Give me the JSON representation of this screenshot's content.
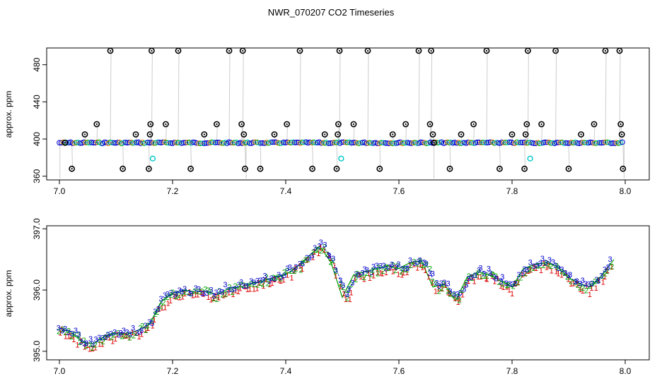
{
  "title": "NWR_070207  CO2 Timeseries",
  "colors": {
    "background": "#ffffff",
    "axis": "#000000",
    "trace": "#9a9a9a",
    "outlier_marker": "#000000",
    "series1": "#dd0000",
    "series2": "#00a000",
    "series3": "#0000cc",
    "cyan": "#00c8c8",
    "orange": "#e08000"
  },
  "chart_data": [
    {
      "type": "scatter",
      "ylabel": "approx. ppm",
      "xlim": [
        7.0,
        8.0
      ],
      "ylim": [
        356,
        498
      ],
      "x_ticks": [
        "7.0",
        "7.2",
        "7.4",
        "7.6",
        "7.8",
        "8.0"
      ],
      "y_ticks": [
        "360",
        "400",
        "440",
        "480"
      ],
      "baseline_ppm": 396,
      "outlier_high_ppm": 495,
      "outliers": [
        {
          "x": 7.01,
          "y": 396
        },
        {
          "x": 7.022,
          "y": 368
        },
        {
          "x": 7.045,
          "y": 405
        },
        {
          "x": 7.066,
          "y": 416
        },
        {
          "x": 7.09,
          "y": 495
        },
        {
          "x": 7.112,
          "y": 368
        },
        {
          "x": 7.135,
          "y": 405
        },
        {
          "x": 7.158,
          "y": 368
        },
        {
          "x": 7.16,
          "y": 405
        },
        {
          "x": 7.161,
          "y": 416
        },
        {
          "x": 7.163,
          "y": 495
        },
        {
          "x": 7.188,
          "y": 416
        },
        {
          "x": 7.21,
          "y": 495
        },
        {
          "x": 7.232,
          "y": 368
        },
        {
          "x": 7.256,
          "y": 405
        },
        {
          "x": 7.278,
          "y": 416
        },
        {
          "x": 7.3,
          "y": 495
        },
        {
          "x": 7.322,
          "y": 416
        },
        {
          "x": 7.324,
          "y": 495
        },
        {
          "x": 7.326,
          "y": 405
        },
        {
          "x": 7.328,
          "y": 368
        },
        {
          "x": 7.355,
          "y": 368
        },
        {
          "x": 7.38,
          "y": 405
        },
        {
          "x": 7.402,
          "y": 416
        },
        {
          "x": 7.425,
          "y": 495
        },
        {
          "x": 7.447,
          "y": 368
        },
        {
          "x": 7.469,
          "y": 405
        },
        {
          "x": 7.49,
          "y": 368
        },
        {
          "x": 7.492,
          "y": 405
        },
        {
          "x": 7.493,
          "y": 416
        },
        {
          "x": 7.495,
          "y": 495
        },
        {
          "x": 7.52,
          "y": 416
        },
        {
          "x": 7.545,
          "y": 495
        },
        {
          "x": 7.566,
          "y": 368
        },
        {
          "x": 7.589,
          "y": 405
        },
        {
          "x": 7.612,
          "y": 416
        },
        {
          "x": 7.635,
          "y": 495
        },
        {
          "x": 7.655,
          "y": 416
        },
        {
          "x": 7.657,
          "y": 495
        },
        {
          "x": 7.66,
          "y": 405
        },
        {
          "x": 7.662,
          "y": 396
        },
        {
          "x": 7.69,
          "y": 368
        },
        {
          "x": 7.71,
          "y": 405
        },
        {
          "x": 7.732,
          "y": 416
        },
        {
          "x": 7.755,
          "y": 495
        },
        {
          "x": 7.778,
          "y": 368
        },
        {
          "x": 7.8,
          "y": 405
        },
        {
          "x": 7.822,
          "y": 368
        },
        {
          "x": 7.824,
          "y": 405
        },
        {
          "x": 7.826,
          "y": 416
        },
        {
          "x": 7.828,
          "y": 495
        },
        {
          "x": 7.852,
          "y": 416
        },
        {
          "x": 7.877,
          "y": 495
        },
        {
          "x": 7.9,
          "y": 368
        },
        {
          "x": 7.922,
          "y": 405
        },
        {
          "x": 7.945,
          "y": 416
        },
        {
          "x": 7.965,
          "y": 495
        },
        {
          "x": 7.99,
          "y": 495
        },
        {
          "x": 7.992,
          "y": 416
        },
        {
          "x": 7.994,
          "y": 405
        },
        {
          "x": 7.996,
          "y": 368
        }
      ],
      "cyan_points": [
        {
          "x": 7.165,
          "y": 379
        },
        {
          "x": 7.498,
          "y": 379
        },
        {
          "x": 7.832,
          "y": 379
        }
      ]
    },
    {
      "type": "scatter",
      "ylabel": "approx. ppm",
      "xlim": [
        7.0,
        8.0
      ],
      "ylim": [
        394.86,
        397.05
      ],
      "x_ticks": [
        "7.0",
        "7.2",
        "7.4",
        "7.6",
        "7.8",
        "8.0"
      ],
      "y_ticks": [
        "395.0",
        "396.0",
        "397.0"
      ],
      "series_labels": [
        "1",
        "2",
        "3"
      ],
      "trend_x": [
        7.0,
        7.02,
        7.04,
        7.06,
        7.08,
        7.1,
        7.12,
        7.14,
        7.16,
        7.18,
        7.2,
        7.22,
        7.24,
        7.26,
        7.28,
        7.3,
        7.32,
        7.34,
        7.36,
        7.38,
        7.4,
        7.42,
        7.44,
        7.46,
        7.48,
        7.5,
        7.52,
        7.54,
        7.56,
        7.58,
        7.6,
        7.62,
        7.64,
        7.66,
        7.68,
        7.7,
        7.72,
        7.74,
        7.76,
        7.78,
        7.8,
        7.82,
        7.84,
        7.86,
        7.88,
        7.9,
        7.92,
        7.94,
        7.96,
        7.98
      ],
      "trend_y": [
        395.38,
        395.32,
        395.15,
        395.12,
        395.25,
        395.3,
        395.28,
        395.35,
        395.45,
        395.82,
        395.95,
        396.0,
        395.97,
        395.98,
        395.92,
        396.03,
        396.05,
        396.1,
        396.15,
        396.2,
        396.25,
        396.38,
        396.55,
        396.72,
        396.45,
        395.88,
        396.25,
        396.3,
        396.35,
        396.4,
        396.35,
        396.45,
        396.48,
        396.05,
        396.1,
        395.82,
        396.2,
        396.3,
        396.25,
        396.15,
        396.05,
        396.35,
        396.42,
        396.45,
        396.38,
        396.2,
        396.1,
        396.05,
        396.25,
        396.5
      ],
      "sample_x": [
        7.0,
        7.005,
        7.011,
        7.016,
        7.022,
        7.027,
        7.033,
        7.038,
        7.044,
        7.049,
        7.055,
        7.06,
        7.065,
        7.071,
        7.076,
        7.082,
        7.087,
        7.093,
        7.098,
        7.104,
        7.109,
        7.114,
        7.12,
        7.125,
        7.131,
        7.136,
        7.142,
        7.147,
        7.153,
        7.158,
        7.163,
        7.169,
        7.174,
        7.18,
        7.185,
        7.191,
        7.196,
        7.202,
        7.207,
        7.213,
        7.218,
        7.223,
        7.229,
        7.234,
        7.24,
        7.245,
        7.251,
        7.256,
        7.262,
        7.267,
        7.272,
        7.278,
        7.283,
        7.289,
        7.294,
        7.3,
        7.305,
        7.311,
        7.316,
        7.321,
        7.327,
        7.332,
        7.338,
        7.343,
        7.349,
        7.354,
        7.36,
        7.365,
        7.37,
        7.376,
        7.381,
        7.387,
        7.392,
        7.398,
        7.403,
        7.409,
        7.414,
        7.419,
        7.425,
        7.43,
        7.436,
        7.441,
        7.447,
        7.452,
        7.458,
        7.463,
        7.468,
        7.474,
        7.479,
        7.485,
        7.49,
        7.496,
        7.501,
        7.507,
        7.512,
        7.517,
        7.523,
        7.528,
        7.534,
        7.539,
        7.545,
        7.55,
        7.556,
        7.561,
        7.566,
        7.572,
        7.577,
        7.583,
        7.588,
        7.594,
        7.599,
        7.605,
        7.61,
        7.616,
        7.621,
        7.626,
        7.632,
        7.637,
        7.643,
        7.648,
        7.654,
        7.659,
        7.665,
        7.67,
        7.675,
        7.681,
        7.686,
        7.692,
        7.697,
        7.703,
        7.708,
        7.714,
        7.719,
        7.724,
        7.73,
        7.735,
        7.741,
        7.746,
        7.752,
        7.757,
        7.763,
        7.768,
        7.773,
        7.779,
        7.784,
        7.79,
        7.795,
        7.801,
        7.806,
        7.812,
        7.817,
        7.822,
        7.828,
        7.833,
        7.839,
        7.844,
        7.85,
        7.855,
        7.861,
        7.866,
        7.871,
        7.877,
        7.882,
        7.888,
        7.893,
        7.899,
        7.904,
        7.91,
        7.915,
        7.92,
        7.926,
        7.931,
        7.937,
        7.942,
        7.948,
        7.953,
        7.959,
        7.964,
        7.969,
        7.975,
        7.98
      ],
      "sample_y": [
        395.38,
        395.37,
        395.35,
        395.34,
        395.32,
        395.28,
        395.23,
        395.19,
        395.15,
        395.14,
        395.13,
        395.12,
        395.14,
        395.18,
        395.21,
        395.25,
        395.26,
        395.28,
        395.29,
        395.3,
        395.3,
        395.29,
        395.28,
        395.29,
        395.31,
        395.33,
        395.36,
        395.38,
        395.41,
        395.44,
        395.5,
        395.6,
        395.7,
        395.79,
        395.84,
        395.88,
        395.91,
        395.95,
        395.96,
        395.98,
        396.0,
        395.99,
        395.98,
        395.97,
        395.97,
        395.97,
        395.98,
        395.98,
        395.97,
        395.95,
        395.93,
        395.93,
        395.96,
        395.99,
        396.02,
        396.03,
        396.04,
        396.04,
        396.05,
        396.06,
        396.07,
        396.09,
        396.1,
        396.12,
        396.13,
        396.15,
        396.16,
        396.18,
        396.19,
        396.2,
        396.22,
        396.23,
        396.24,
        396.26,
        396.28,
        396.31,
        396.35,
        396.38,
        396.41,
        396.45,
        396.5,
        396.55,
        396.6,
        396.64,
        396.69,
        396.72,
        396.68,
        396.61,
        396.53,
        396.45,
        396.33,
        396.18,
        396.02,
        395.9,
        395.97,
        396.08,
        396.22,
        396.26,
        396.27,
        396.29,
        396.3,
        396.31,
        396.33,
        396.34,
        396.35,
        396.36,
        396.38,
        396.39,
        396.4,
        396.39,
        396.38,
        396.36,
        396.36,
        396.39,
        396.42,
        396.45,
        396.46,
        396.47,
        396.48,
        396.42,
        396.32,
        396.2,
        396.09,
        396.06,
        396.08,
        396.09,
        396.06,
        395.99,
        395.91,
        395.86,
        395.9,
        396.01,
        396.11,
        396.2,
        396.23,
        396.26,
        396.29,
        396.3,
        396.29,
        396.28,
        396.26,
        396.24,
        396.21,
        396.18,
        396.15,
        396.12,
        396.09,
        396.06,
        396.11,
        396.2,
        396.28,
        396.35,
        396.37,
        396.39,
        396.41,
        396.42,
        396.43,
        396.44,
        396.45,
        396.44,
        396.42,
        396.4,
        396.38,
        396.34,
        396.29,
        396.24,
        396.19,
        396.16,
        396.13,
        396.11,
        396.09,
        396.07,
        396.05,
        396.08,
        396.14,
        396.19,
        396.25,
        396.32,
        396.39,
        396.46
      ]
    }
  ]
}
